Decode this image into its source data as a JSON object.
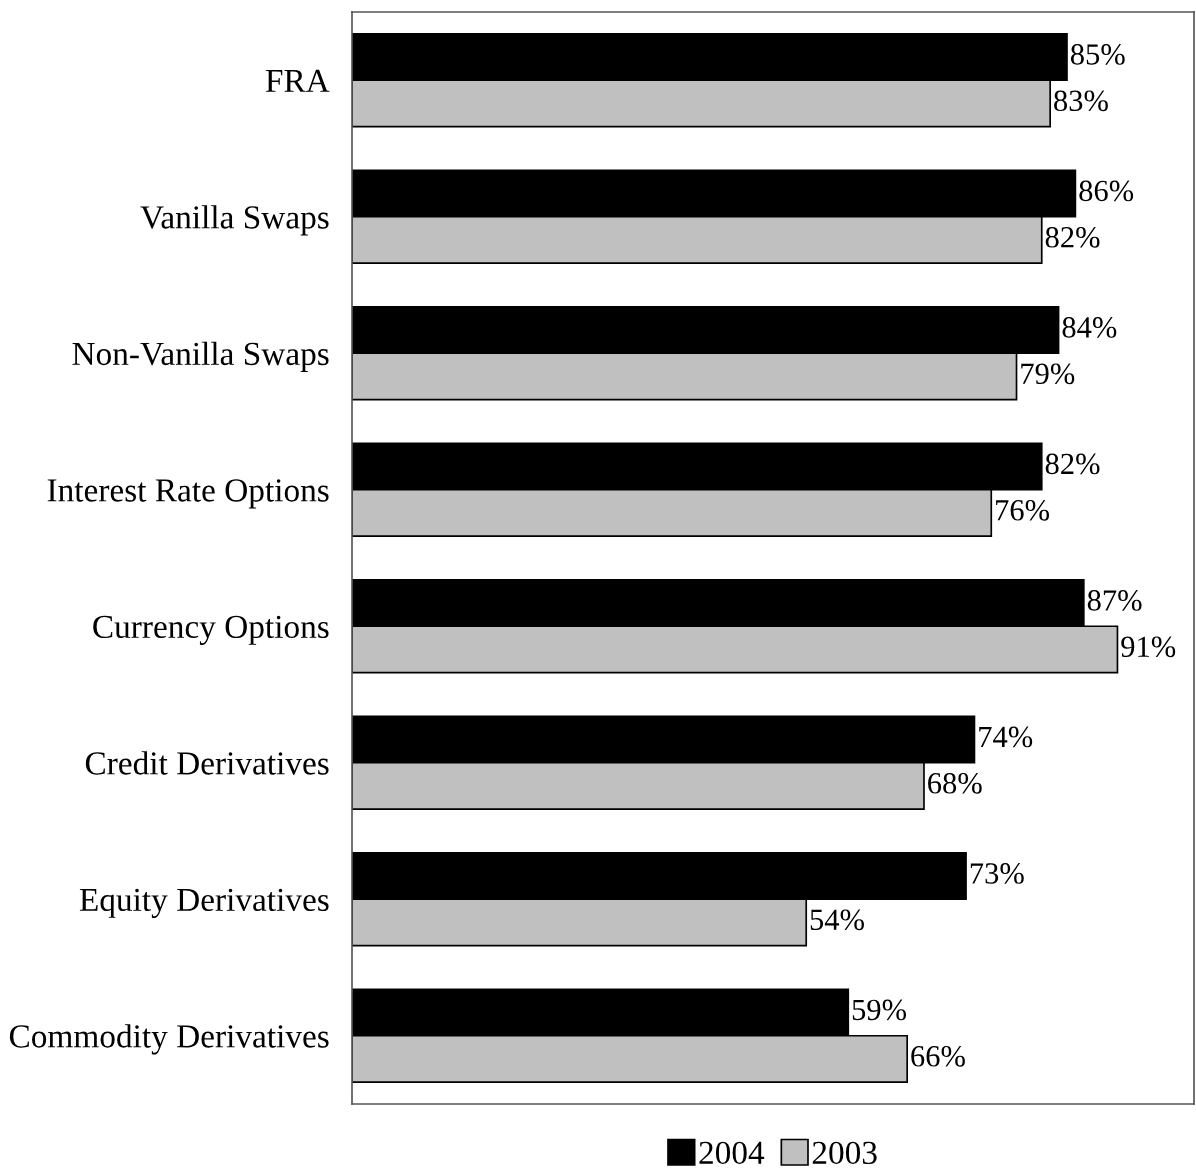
{
  "chart_data": {
    "type": "bar",
    "orientation": "horizontal",
    "categories": [
      "FRA",
      "Vanilla Swaps",
      "Non-Vanilla Swaps",
      "Interest Rate Options",
      "Currency Options",
      "Credit Derivatives",
      "Equity Derivatives",
      "Commodity Derivatives"
    ],
    "series": [
      {
        "name": "2004",
        "color": "#000000",
        "values": [
          85,
          86,
          84,
          82,
          87,
          74,
          73,
          59
        ],
        "value_labels": [
          "85%",
          "86%",
          "84%",
          "82%",
          "87%",
          "74%",
          "73%",
          "59%"
        ]
      },
      {
        "name": "2003",
        "color": "#c0c0c0",
        "values": [
          83,
          82,
          79,
          76,
          91,
          68,
          54,
          66
        ],
        "value_labels": [
          "83%",
          "82%",
          "79%",
          "76%",
          "91%",
          "68%",
          "54%",
          "66%"
        ]
      }
    ],
    "tick_labels": "y",
    "grid": false,
    "legend": "bottom"
  }
}
